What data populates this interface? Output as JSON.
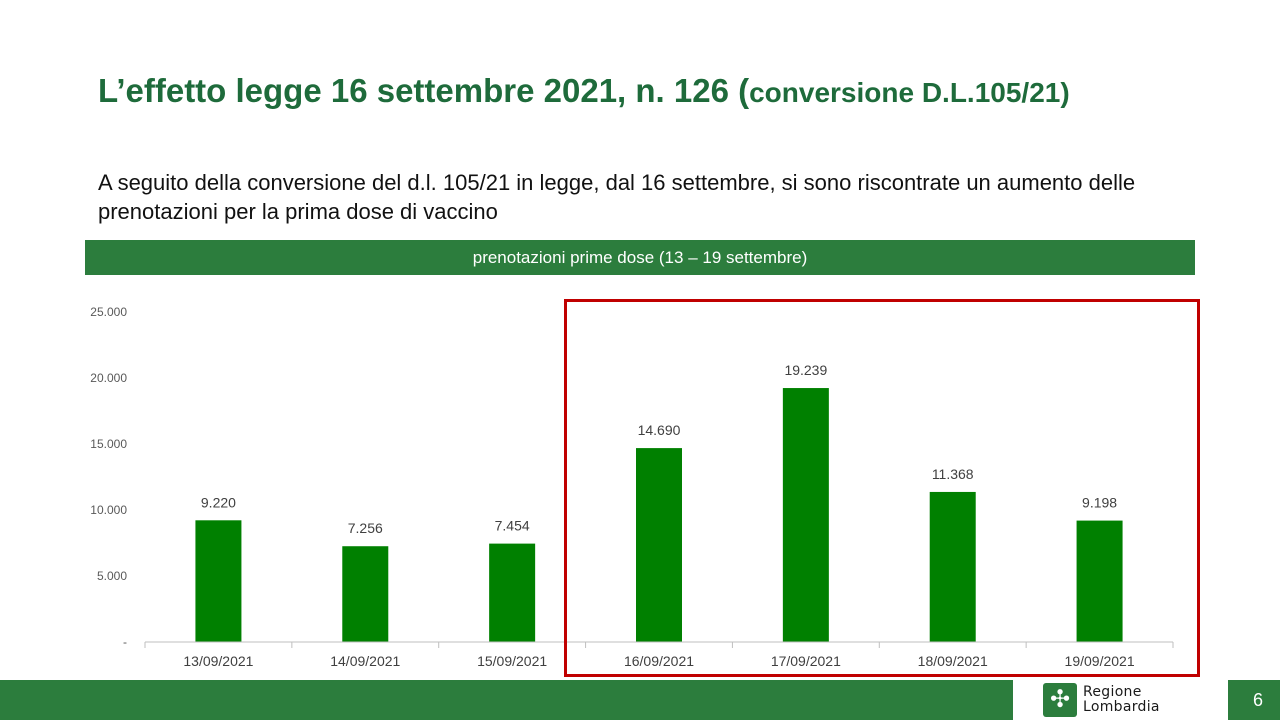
{
  "title": {
    "main": "L’effetto legge 16 settembre 2021, n. 126 (",
    "small": "conversione D.L.105/21)"
  },
  "subtitle": "A seguito della conversione del d.l. 105/21 in legge, dal 16 settembre, si sono riscontrate un aumento delle prenotazioni  per la prima dose di vaccino",
  "banner": "prenotazioni prime dose (13 – 19 settembre)",
  "chart_data": {
    "type": "bar",
    "categories": [
      "13/09/2021",
      "14/09/2021",
      "15/09/2021",
      "16/09/2021",
      "17/09/2021",
      "18/09/2021",
      "19/09/2021"
    ],
    "values": [
      9220,
      7256,
      7454,
      14690,
      19239,
      11368,
      9198
    ],
    "data_labels": [
      "9.220",
      "7.256",
      "7.454",
      "14.690",
      "19.239",
      "11.368",
      "9.198"
    ],
    "y_ticks": [
      0,
      5000,
      10000,
      15000,
      20000,
      25000
    ],
    "y_tick_labels": [
      "-",
      "5.000",
      "10.000",
      "15.000",
      "20.000",
      "25.000"
    ],
    "ylim": [
      0,
      25000
    ],
    "grid": false,
    "bar_color": "#008000",
    "highlight_categories": [
      "16/09/2021",
      "17/09/2021",
      "18/09/2021",
      "19/09/2021"
    ],
    "highlight_color": "#c00000"
  },
  "footer": {
    "logo_line1": "Regione",
    "logo_line2": "Lombardia",
    "page_number": "6"
  },
  "colors": {
    "title_green": "#1e6b3b",
    "banner_green": "#2c7d3d",
    "bar_green": "#008000"
  }
}
